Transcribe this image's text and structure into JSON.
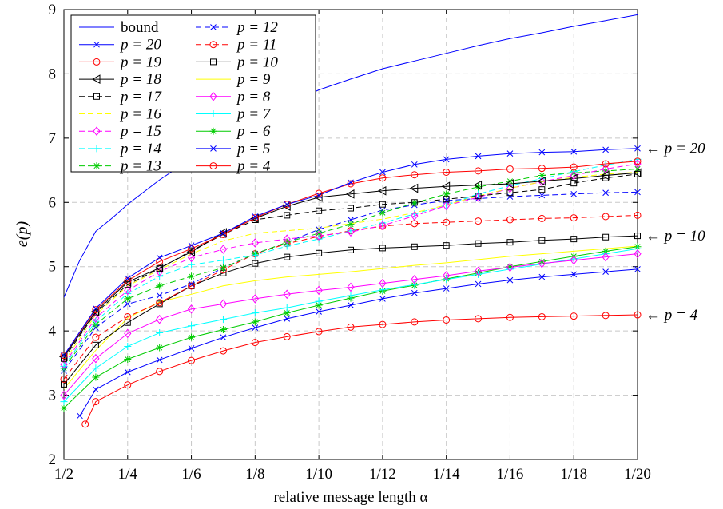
{
  "chart_data": {
    "type": "line",
    "xlabel": "relative message length α",
    "ylabel": "e(p)",
    "x": [
      2,
      3,
      4,
      5,
      6,
      7,
      8,
      9,
      10,
      11,
      12,
      13,
      14,
      15,
      16,
      17,
      18,
      19,
      20
    ],
    "x_ticks": [
      2,
      4,
      6,
      8,
      10,
      12,
      14,
      16,
      18,
      20
    ],
    "x_tick_labels": [
      "1/2",
      "1/4",
      "1/6",
      "1/8",
      "1/10",
      "1/12",
      "1/14",
      "1/16",
      "1/18",
      "1/20"
    ],
    "xlim": [
      2,
      20
    ],
    "ylim": [
      2,
      9
    ],
    "y_ticks": [
      2,
      3,
      4,
      5,
      6,
      7,
      8,
      9
    ],
    "grid": true,
    "legend_position": "top-left",
    "annotations": [
      {
        "text": "← p = 20",
        "y": 6.84
      },
      {
        "text": "← p = 10",
        "y": 5.48
      },
      {
        "text": "← p = 4",
        "y": 4.25
      }
    ],
    "series": [
      {
        "name": "bound",
        "color": "#0000ff",
        "dash": "solid",
        "marker": "none",
        "x": [
          2,
          2.5,
          3,
          3.5,
          4,
          5,
          6,
          7,
          8,
          9,
          10,
          11,
          12,
          13,
          14,
          15,
          16,
          17,
          18,
          19,
          20
        ],
        "values": [
          4.52,
          5.1,
          5.55,
          5.75,
          5.97,
          6.35,
          6.68,
          7.0,
          7.28,
          7.52,
          7.75,
          7.92,
          8.08,
          8.2,
          8.32,
          8.44,
          8.55,
          8.64,
          8.74,
          8.83,
          8.92
        ]
      },
      {
        "name": "p = 20",
        "color": "#0000ff",
        "dash": "solid",
        "marker": "x",
        "values": [
          3.62,
          4.35,
          4.82,
          5.14,
          5.33,
          5.52,
          5.78,
          5.97,
          6.11,
          6.31,
          6.47,
          6.59,
          6.67,
          6.72,
          6.76,
          6.78,
          6.79,
          6.82,
          6.84
        ]
      },
      {
        "name": "p = 19",
        "color": "#ff0000",
        "dash": "solid",
        "marker": "circle",
        "values": [
          3.62,
          4.33,
          4.78,
          5.08,
          5.28,
          5.5,
          5.76,
          5.97,
          6.14,
          6.29,
          6.38,
          6.43,
          6.47,
          6.49,
          6.52,
          6.53,
          6.55,
          6.6,
          6.64
        ]
      },
      {
        "name": "p = 18",
        "color": "#000000",
        "dash": "solid",
        "marker": "triangle",
        "values": [
          3.6,
          4.3,
          4.76,
          4.98,
          5.23,
          5.53,
          5.75,
          5.94,
          6.08,
          6.13,
          6.18,
          6.22,
          6.25,
          6.27,
          6.29,
          6.33,
          6.37,
          6.42,
          6.46
        ]
      },
      {
        "name": "p = 17",
        "color": "#000000",
        "dash": "dashed",
        "marker": "square",
        "values": [
          3.57,
          4.28,
          4.72,
          4.97,
          5.25,
          5.5,
          5.73,
          5.8,
          5.87,
          5.91,
          5.97,
          6.0,
          6.05,
          6.1,
          6.15,
          6.2,
          6.3,
          6.38,
          6.44
        ]
      },
      {
        "name": "p = 16",
        "color": "#ffff00",
        "dash": "dashed",
        "marker": "none",
        "values": [
          3.52,
          4.25,
          4.7,
          4.95,
          5.2,
          5.4,
          5.52,
          5.56,
          5.6,
          5.67,
          5.74,
          5.84,
          5.96,
          6.1,
          6.22,
          6.32,
          6.39,
          6.44,
          6.47
        ]
      },
      {
        "name": "p = 15",
        "color": "#ff00ff",
        "dash": "dashed",
        "marker": "diamond",
        "values": [
          3.48,
          4.2,
          4.63,
          4.92,
          5.14,
          5.27,
          5.37,
          5.43,
          5.48,
          5.54,
          5.64,
          5.79,
          5.95,
          6.08,
          6.22,
          6.32,
          6.42,
          6.52,
          6.6
        ]
      },
      {
        "name": "p = 14",
        "color": "#00ffff",
        "dash": "dashed",
        "marker": "plus",
        "values": [
          3.45,
          4.15,
          4.58,
          4.85,
          5.03,
          5.1,
          5.18,
          5.32,
          5.43,
          5.56,
          5.68,
          5.82,
          5.96,
          6.13,
          6.26,
          6.37,
          6.48,
          6.58,
          6.67
        ]
      },
      {
        "name": "p = 13",
        "color": "#00cc00",
        "dash": "dashed",
        "marker": "asterisk",
        "values": [
          3.42,
          4.1,
          4.5,
          4.7,
          4.85,
          4.98,
          5.2,
          5.38,
          5.52,
          5.66,
          5.84,
          5.99,
          6.13,
          6.24,
          6.33,
          6.42,
          6.46,
          6.49,
          6.52
        ]
      },
      {
        "name": "p = 12",
        "color": "#0000ff",
        "dash": "dashed",
        "marker": "x",
        "values": [
          3.38,
          4.05,
          4.42,
          4.55,
          4.73,
          4.98,
          5.2,
          5.38,
          5.58,
          5.73,
          5.88,
          5.96,
          6.03,
          6.06,
          6.09,
          6.11,
          6.13,
          6.15,
          6.16
        ]
      },
      {
        "name": "p = 11",
        "color": "#ff0000",
        "dash": "dashed",
        "marker": "circle",
        "values": [
          3.25,
          3.9,
          4.22,
          4.44,
          4.7,
          4.95,
          5.2,
          5.36,
          5.47,
          5.56,
          5.63,
          5.67,
          5.69,
          5.71,
          5.73,
          5.75,
          5.76,
          5.78,
          5.8
        ]
      },
      {
        "name": "p = 10",
        "color": "#000000",
        "dash": "solid",
        "marker": "square",
        "values": [
          3.17,
          3.78,
          4.13,
          4.42,
          4.7,
          4.9,
          5.05,
          5.15,
          5.21,
          5.26,
          5.29,
          5.31,
          5.33,
          5.36,
          5.38,
          5.41,
          5.43,
          5.46,
          5.48
        ]
      },
      {
        "name": "p = 9",
        "color": "#ffff00",
        "dash": "solid",
        "marker": "none",
        "values": [
          3.1,
          3.7,
          4.2,
          4.45,
          4.57,
          4.7,
          4.78,
          4.84,
          4.88,
          4.92,
          4.97,
          5.02,
          5.06,
          5.11,
          5.16,
          5.2,
          5.24,
          5.28,
          5.32
        ]
      },
      {
        "name": "p = 8",
        "color": "#ff00ff",
        "dash": "solid",
        "marker": "diamond",
        "values": [
          3.0,
          3.57,
          3.96,
          4.18,
          4.34,
          4.42,
          4.5,
          4.57,
          4.63,
          4.68,
          4.74,
          4.8,
          4.86,
          4.93,
          4.99,
          5.05,
          5.1,
          5.15,
          5.2
        ]
      },
      {
        "name": "p = 7",
        "color": "#00ffff",
        "dash": "solid",
        "marker": "plus",
        "values": [
          2.9,
          3.42,
          3.76,
          3.97,
          4.08,
          4.18,
          4.28,
          4.36,
          4.46,
          4.55,
          4.64,
          4.72,
          4.8,
          4.88,
          4.96,
          5.04,
          5.12,
          5.2,
          5.28
        ]
      },
      {
        "name": "p = 6",
        "color": "#00cc00",
        "dash": "solid",
        "marker": "asterisk",
        "values": [
          2.8,
          3.28,
          3.56,
          3.74,
          3.9,
          4.02,
          4.14,
          4.28,
          4.4,
          4.51,
          4.62,
          4.71,
          4.81,
          4.9,
          5.0,
          5.08,
          5.16,
          5.24,
          5.31
        ]
      },
      {
        "name": "p = 5",
        "color": "#0000ff",
        "dash": "solid",
        "marker": "x",
        "x": [
          2.5,
          3,
          4,
          5,
          6,
          7,
          8,
          9,
          10,
          11,
          12,
          13,
          14,
          15,
          16,
          17,
          18,
          19,
          20
        ],
        "values": [
          2.68,
          3.09,
          3.36,
          3.55,
          3.73,
          3.9,
          4.05,
          4.19,
          4.3,
          4.4,
          4.5,
          4.59,
          4.66,
          4.73,
          4.79,
          4.84,
          4.88,
          4.92,
          4.96
        ]
      },
      {
        "name": "p = 4",
        "color": "#ff0000",
        "dash": "solid",
        "marker": "circle",
        "x": [
          2.67,
          3,
          4,
          5,
          6,
          7,
          8,
          9,
          10,
          11,
          12,
          13,
          14,
          15,
          16,
          17,
          18,
          19,
          20
        ],
        "values": [
          2.55,
          2.9,
          3.16,
          3.37,
          3.54,
          3.69,
          3.82,
          3.91,
          3.99,
          4.06,
          4.1,
          4.14,
          4.17,
          4.19,
          4.21,
          4.22,
          4.23,
          4.24,
          4.25
        ]
      }
    ]
  }
}
